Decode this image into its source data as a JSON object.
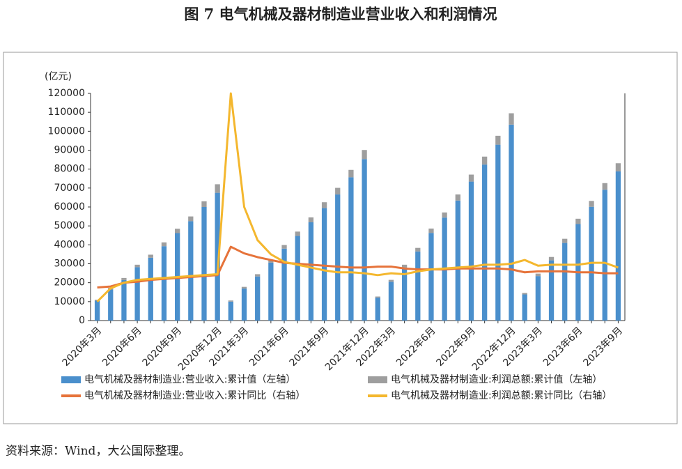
{
  "chart_data": {
    "type": "bar",
    "title": "图 7  电气机械及器材制造业营业收入和利润情况",
    "y_label": "(亿元)",
    "source": "资料来源：Wind，大公国际整理。",
    "categories": [
      "2020年3月",
      null,
      null,
      "2020年6月",
      null,
      null,
      "2020年9月",
      null,
      null,
      "2020年12月",
      null,
      "2021年3月",
      null,
      null,
      "2021年6月",
      null,
      null,
      "2021年9月",
      null,
      null,
      "2021年12月",
      null,
      "2022年3月",
      null,
      null,
      "2022年6月",
      null,
      null,
      "2022年9月",
      null,
      null,
      "2022年12月",
      null,
      "2023年3月",
      null,
      null,
      "2023年6月",
      null,
      null,
      "2023年9月"
    ],
    "ylim": [
      0,
      120000
    ],
    "yticks": [
      0,
      10000,
      20000,
      30000,
      40000,
      50000,
      60000,
      70000,
      80000,
      90000,
      100000,
      110000,
      120000
    ],
    "y2lim": [
      -50,
      190
    ],
    "series": [
      {
        "name": "电气机械及器材制造业:营业收入:累计值（左轴）",
        "type": "bar",
        "color": "#4a8fcc",
        "values": [
          10500,
          16400,
          21400,
          28200,
          33200,
          39300,
          46200,
          52500,
          60000,
          67500,
          10000,
          16900,
          23300,
          30600,
          38000,
          44700,
          51900,
          59400,
          66600,
          75700,
          85300,
          12100,
          20500,
          28100,
          36500,
          46300,
          54400,
          63400,
          73400,
          82400,
          92900,
          103500,
          13800,
          23500,
          31800,
          41000,
          51000,
          60100,
          69100,
          78800
        ]
      },
      {
        "name": "电气机械及器材制造业:利润总额:累计值（左轴）",
        "type": "bar",
        "color": "#9e9e9e",
        "values": [
          500,
          900,
          1100,
          1300,
          1600,
          2000,
          2300,
          2500,
          3000,
          4500,
          600,
          900,
          1200,
          1500,
          1900,
          2300,
          2600,
          3100,
          3500,
          3900,
          4800,
          600,
          1000,
          1400,
          1900,
          2300,
          2700,
          3200,
          3700,
          4200,
          4700,
          6000,
          800,
          1300,
          1800,
          2200,
          2800,
          3100,
          3500,
          4300
        ]
      },
      {
        "name": "电气机械及器材制造业:营业收入:累计同比（右轴）",
        "type": "line",
        "axis": "y2",
        "color": "#e6733a",
        "values": [
          -15,
          -14,
          -10,
          -9,
          -7,
          -6,
          -5,
          -4,
          -3,
          -2,
          28,
          21,
          17,
          14,
          11,
          10,
          9,
          8,
          7,
          6,
          6,
          7,
          7,
          5,
          4,
          4,
          4,
          5,
          5,
          5,
          5,
          4,
          1,
          2,
          2,
          2,
          1,
          1,
          0,
          0
        ]
      },
      {
        "name": "电气机械及器材制造业:利润总额:累计同比（右轴）",
        "type": "line",
        "axis": "y2",
        "color": "#f4b72e",
        "values": [
          -30,
          -16,
          -10,
          -7,
          -6,
          -5,
          -4,
          -3,
          -2,
          -1,
          190,
          70,
          35,
          20,
          12,
          9,
          6,
          3,
          1,
          1,
          0,
          -2,
          0,
          -1,
          2,
          4,
          5,
          6,
          7,
          9,
          9,
          10,
          14,
          8,
          9,
          9,
          9,
          11,
          11,
          6
        ]
      }
    ]
  }
}
